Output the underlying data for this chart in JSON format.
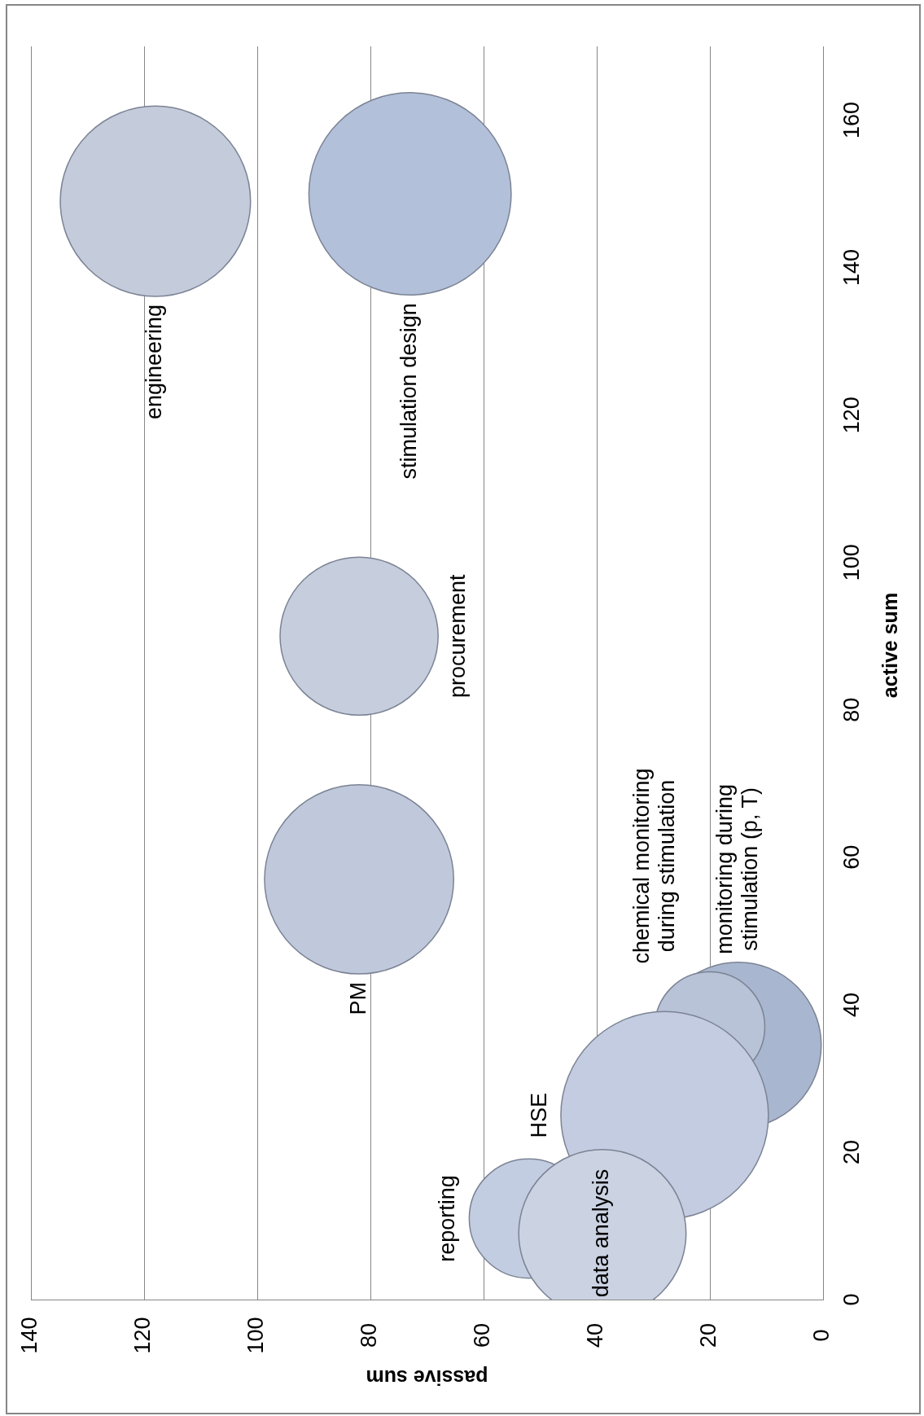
{
  "chart_data": {
    "type": "bubble",
    "xlabel": "passive sum",
    "ylabel": "active sum",
    "series": [
      {
        "name": "engineering",
        "color": "#c4cbdb",
        "x": [
          118
        ],
        "values": [
          149
        ],
        "sizes": [
          0.84
        ]
      },
      {
        "name": "stimulation design",
        "color": "#b2c0da",
        "x": [
          73
        ],
        "values": [
          150
        ],
        "sizes": [
          0.95
        ]
      },
      {
        "name": "procurement",
        "color": "#c6cddd",
        "x": [
          82
        ],
        "values": [
          90
        ],
        "sizes": [
          0.58
        ]
      },
      {
        "name": "PM",
        "color": "#c0c9dc",
        "x": [
          82
        ],
        "values": [
          57
        ],
        "sizes": [
          0.83
        ]
      },
      {
        "name": "data analysis",
        "color": "#cbd2e2",
        "x": [
          39
        ],
        "values": [
          9
        ],
        "sizes": [
          0.65
        ]
      },
      {
        "name": "reporting",
        "color": "#c3cde2",
        "x": [
          52
        ],
        "values": [
          11
        ],
        "sizes": [
          0.33
        ]
      },
      {
        "name": "HSE",
        "color": "#c3cce0",
        "x": [
          28
        ],
        "values": [
          25
        ],
        "sizes": [
          1
        ]
      },
      {
        "name": "chemical monitoring\nduring stimulation",
        "color": "#b9c3d8",
        "x": [
          20
        ],
        "values": [
          37
        ],
        "sizes": [
          0.28
        ]
      },
      {
        "name": "monitoring during\nstimulation (p, T)",
        "color": "#a9b6cf",
        "x": [
          15
        ],
        "values": [
          34.5
        ],
        "sizes": [
          0.64
        ]
      }
    ],
    "xlim": [
      140,
      0
    ],
    "xticks": [
      140,
      120,
      100,
      80,
      60,
      40,
      20,
      0
    ],
    "ylim": [
      0,
      170
    ],
    "yticks": [
      0,
      20,
      40,
      60,
      80,
      100,
      120,
      140,
      160
    ],
    "grid": "x"
  }
}
